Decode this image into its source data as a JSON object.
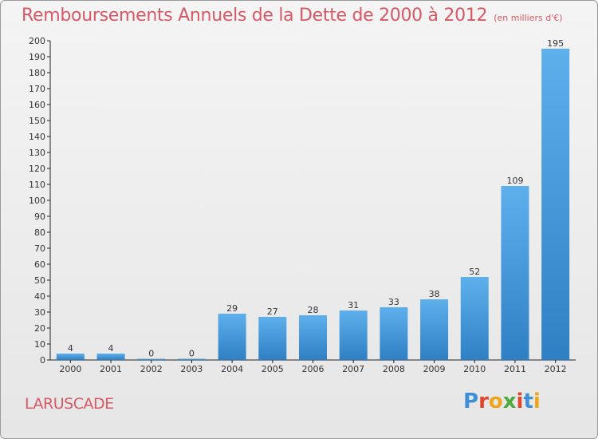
{
  "chart_data": {
    "type": "bar",
    "title": "Remboursements Annuels de la Dette de 2000 à 2012",
    "unit_note": "(en milliers d'€)",
    "categories": [
      "2000",
      "2001",
      "2002",
      "2003",
      "2004",
      "2005",
      "2006",
      "2007",
      "2008",
      "2009",
      "2010",
      "2011",
      "2012"
    ],
    "values": [
      4,
      4,
      0,
      0,
      29,
      27,
      28,
      31,
      33,
      38,
      52,
      109,
      195
    ],
    "ylim": [
      0,
      200
    ],
    "yticks": [
      0,
      10,
      20,
      30,
      40,
      50,
      60,
      70,
      80,
      90,
      100,
      110,
      120,
      130,
      140,
      150,
      160,
      170,
      180,
      190,
      200
    ],
    "grid": false,
    "bar_color": "#4a9fe0"
  },
  "commune": "LARUSCADE",
  "brand": {
    "letters": [
      "P",
      "r",
      "o",
      "x",
      "i",
      "t",
      "i"
    ],
    "colors": [
      "#3f8fd6",
      "#e0462e",
      "#f0a41a",
      "#4aab3c",
      "#e0462e",
      "#3f8fd6",
      "#f0a41a"
    ]
  }
}
